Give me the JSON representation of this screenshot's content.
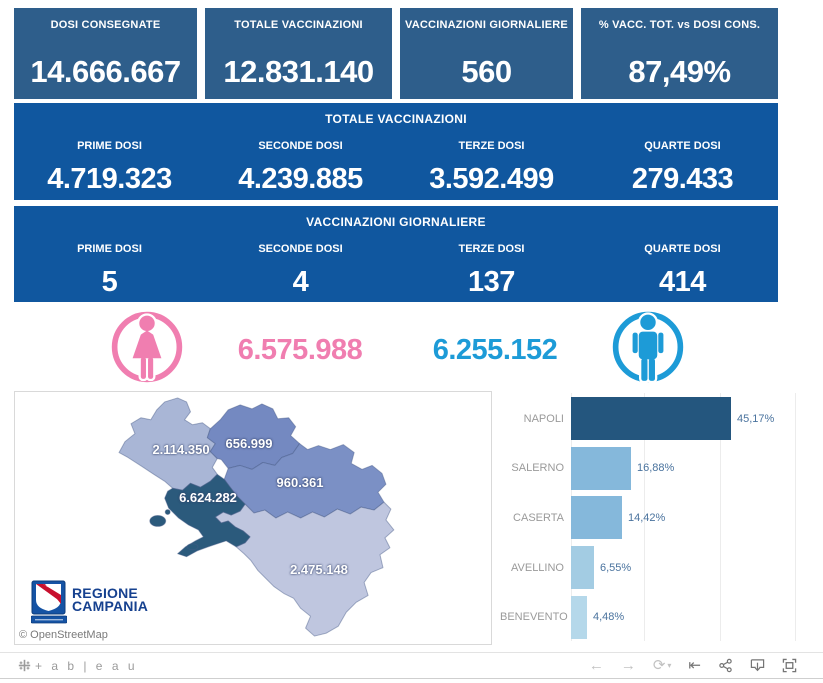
{
  "kpi_row": [
    {
      "label": "DOSI  CONSEGNATE",
      "value": "14.666.667"
    },
    {
      "label": "TOTALE VACCINAZIONI",
      "value": "12.831.140"
    },
    {
      "label": "VACCINAZIONI GIORNALIERE",
      "value": "560"
    },
    {
      "label": "% VACC. TOT. vs DOSI CONS.",
      "value": "87,49%"
    }
  ],
  "totals_banner": {
    "title": "TOTALE VACCINAZIONI",
    "items": [
      {
        "label": "PRIME DOSI",
        "value": "4.719.323"
      },
      {
        "label": "SECONDE DOSI",
        "value": "4.239.885"
      },
      {
        "label": "TERZE DOSI",
        "value": "3.592.499"
      },
      {
        "label": "QUARTE DOSI",
        "value": "279.433"
      }
    ]
  },
  "daily_banner": {
    "title": "VACCINAZIONI GIORNALIERE",
    "items": [
      {
        "label": "PRIME DOSI",
        "value": "5"
      },
      {
        "label": "SECONDE DOSI",
        "value": "4"
      },
      {
        "label": "TERZE DOSI",
        "value": "137"
      },
      {
        "label": "QUARTE DOSI",
        "value": "414"
      }
    ]
  },
  "gender": {
    "female_value": "6.575.988",
    "male_value": "6.255.152",
    "female_color": "#f07eb0",
    "male_color": "#1d9bd7"
  },
  "map": {
    "attribution": "© OpenStreetMap",
    "logo_line1": "REGIONE",
    "logo_line2": "CAMPANIA",
    "provinces": [
      {
        "name": "CASERTA",
        "value": "2.114.350",
        "color": "#a9b6d6"
      },
      {
        "name": "BENEVENTO",
        "value": "656.999",
        "color": "#7489c1"
      },
      {
        "name": "AVELLINO",
        "value": "960.361",
        "color": "#7b90c5"
      },
      {
        "name": "NAPOLI",
        "value": "6.624.282",
        "color": "#2b5a7c"
      },
      {
        "name": "SALERNO",
        "value": "2.475.148",
        "color": "#bfc6df"
      }
    ]
  },
  "chart_data": {
    "type": "bar",
    "orientation": "horizontal",
    "categories": [
      "NAPOLI",
      "SALERNO",
      "CASERTA",
      "AVELLINO",
      "BENEVENTO"
    ],
    "values": [
      45.17,
      16.88,
      14.42,
      6.55,
      4.48
    ],
    "labels": [
      "45,17%",
      "16,88%",
      "14,42%",
      "6,55%",
      "4,48%"
    ],
    "bar_colors": [
      "#24567e",
      "#85b8db",
      "#85b8db",
      "#a3cce3",
      "#b5d8ea"
    ],
    "xlim": [
      0,
      64.9
    ],
    "grid": true,
    "title": "",
    "xlabel": "",
    "ylabel": ""
  },
  "footer": {
    "logo_text": "+ a b | e a u",
    "buttons": [
      "undo",
      "redo",
      "replay",
      "reset",
      "share",
      "download",
      "fullscreen"
    ]
  }
}
